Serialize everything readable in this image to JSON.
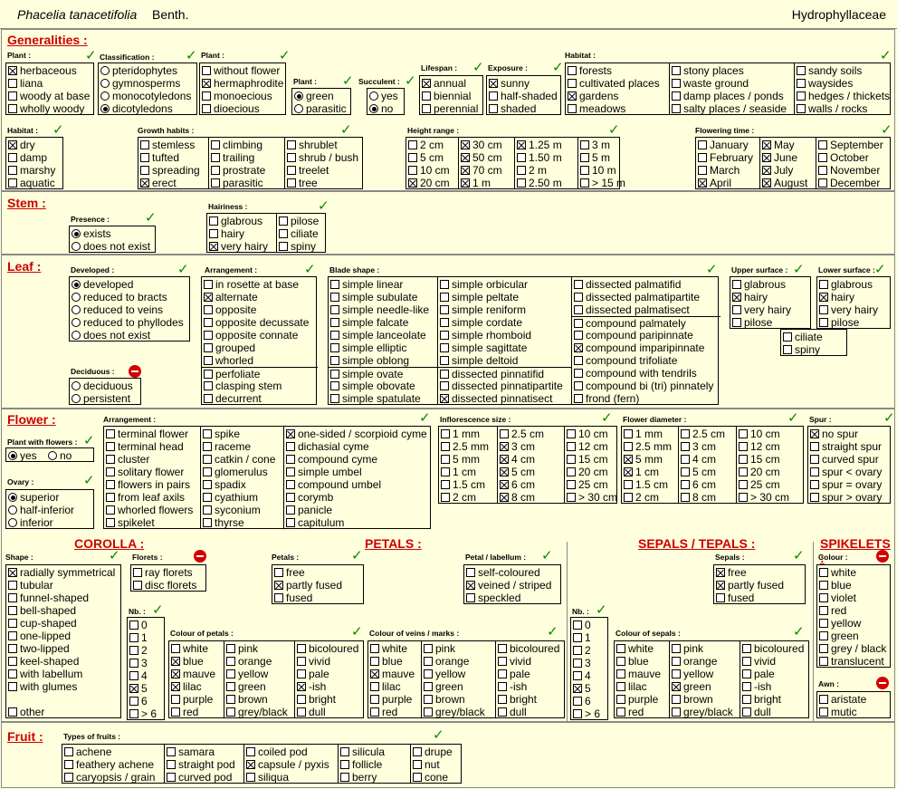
{
  "header": {
    "species": "Phacelia tanacetifolia",
    "author": "Benth.",
    "family": "Hydrophyllaceae"
  },
  "sections": {
    "generalities": "Generalities :",
    "stem": "Stem :",
    "leaf": "Leaf :",
    "flower": "Flower :",
    "fruit": "Fruit :"
  },
  "subheadings": {
    "corolla": "COROLLA :",
    "petals": "PETALS :",
    "sepals": "SEPALS / TEPALS :",
    "spikelets": "SPIKELETS :"
  },
  "groups": [
    {
      "id": "g-plant-1",
      "label": "Plant :",
      "status": "check",
      "type": "cb",
      "cols": [
        [
          "herbaceous",
          "liana",
          "woody at base",
          "wholly woody"
        ]
      ],
      "selected": [
        "herbaceous"
      ]
    },
    {
      "id": "g-class",
      "label": "Classification :",
      "status": "check",
      "type": "rb",
      "cols": [
        [
          "pteridophytes",
          "gymnosperms",
          "monocotyledons",
          "dicotyledons"
        ]
      ],
      "selected": [
        "dicotyledons"
      ]
    },
    {
      "id": "g-plant-2",
      "label": "Plant :",
      "status": "check",
      "type": "cb",
      "cols": [
        [
          "without flower",
          "hermaphrodite",
          "monoecious",
          "dioecious"
        ]
      ],
      "selected": [
        "hermaphrodite"
      ]
    },
    {
      "id": "g-plant-3",
      "label": "Plant :",
      "status": "check",
      "type": "rb",
      "cols": [
        [
          "green",
          "parasitic"
        ]
      ],
      "selected": [
        "green"
      ]
    },
    {
      "id": "g-succ",
      "label": "Succulent :",
      "status": "check",
      "type": "rb",
      "cols": [
        [
          "yes",
          "no"
        ]
      ],
      "selected": [
        "no"
      ]
    },
    {
      "id": "g-life",
      "label": "Lifespan :",
      "status": "check",
      "type": "cb",
      "cols": [
        [
          "annual",
          "biennial",
          "perennial"
        ]
      ],
      "selected": [
        "annual"
      ]
    },
    {
      "id": "g-expo",
      "label": "Exposure :",
      "status": "check",
      "type": "cb",
      "cols": [
        [
          "sunny",
          "half-shaded",
          "shaded"
        ]
      ],
      "selected": [
        "sunny"
      ]
    },
    {
      "id": "g-habitat-1",
      "label": "Habitat :",
      "status": "check",
      "type": "cb",
      "cols": [
        [
          "forests",
          "cultivated places",
          "gardens",
          "meadows"
        ],
        [
          "stony places",
          "waste ground",
          "damp places / ponds",
          "salty places / seaside"
        ],
        [
          "sandy soils",
          "waysides",
          "hedges / thickets",
          "walls / rocks"
        ]
      ],
      "selected": [
        "gardens"
      ]
    },
    {
      "id": "g-habitat-2",
      "label": "Habitat :",
      "status": "check",
      "type": "cb",
      "cols": [
        [
          "dry",
          "damp",
          "marshy",
          "aquatic"
        ]
      ],
      "selected": [
        "dry"
      ]
    },
    {
      "id": "g-growth",
      "label": "Growth habits :",
      "status": "check",
      "type": "cb",
      "cols": [
        [
          "stemless",
          "tufted",
          "spreading",
          "erect"
        ],
        [
          "climbing",
          "trailing",
          "prostrate",
          "parasitic"
        ],
        [
          "shrublet",
          "shrub / bush",
          "treelet",
          "tree"
        ]
      ],
      "selected": [
        "erect"
      ]
    },
    {
      "id": "g-height",
      "label": "Height range :",
      "status": "check",
      "type": "cb",
      "cols": [
        [
          "2 cm",
          "5 cm",
          "10 cm",
          "20 cm"
        ],
        [
          "30 cm",
          "50 cm",
          "70 cm",
          "1 m"
        ],
        [
          "1.25 m",
          "1.50 m",
          "2 m",
          "2.50 m"
        ],
        [
          "3 m",
          "5 m",
          "10 m",
          "> 15 m"
        ]
      ],
      "selected": [
        "30 cm",
        "50 cm",
        "70 cm",
        "1 m",
        "1.25 m",
        "20 cm"
      ]
    },
    {
      "id": "g-flowering",
      "label": "Flowering time :",
      "status": "check",
      "type": "cb",
      "cols": [
        [
          "January",
          "February",
          "March",
          "April"
        ],
        [
          "May",
          "June",
          "July",
          "August"
        ],
        [
          "September",
          "October",
          "November",
          "December"
        ]
      ],
      "selected": [
        "April",
        "May",
        "June",
        "July",
        "August"
      ]
    },
    {
      "id": "g-presence",
      "label": "Presence :",
      "status": "check",
      "type": "rb",
      "cols": [
        [
          "exists",
          "does not exist"
        ]
      ],
      "selected": [
        "exists"
      ]
    },
    {
      "id": "g-stem-hair",
      "label": "Hairiness :",
      "status": "check",
      "type": "cb",
      "cols": [
        [
          "glabrous",
          "hairy",
          "very hairy"
        ],
        [
          "pilose",
          "ciliate",
          "spiny"
        ]
      ],
      "selected": [
        "very hairy"
      ]
    },
    {
      "id": "g-developed",
      "label": "Developed :",
      "status": "check",
      "type": "rb",
      "cols": [
        [
          "developed",
          "reduced to bracts",
          "reduced to veins",
          "reduced to phyllodes",
          "does not exist"
        ]
      ],
      "selected": [
        "developed"
      ]
    },
    {
      "id": "g-deciduous",
      "label": "Deciduous :",
      "status": "stop",
      "type": "rb",
      "cols": [
        [
          "deciduous",
          "persistent"
        ]
      ],
      "selected": []
    },
    {
      "id": "g-arrangement",
      "label": "Arrangement :",
      "status": "check",
      "type": "cb",
      "cols": [
        [
          "in rosette at base",
          "alternate",
          "opposite",
          "opposite decussate",
          "opposite connate",
          "grouped",
          "whorled",
          "perfoliate",
          "clasping stem",
          "decurrent"
        ]
      ],
      "selected": [
        "alternate"
      ]
    },
    {
      "id": "g-blade",
      "label": "Blade shape :",
      "status": "check",
      "type": "cb",
      "cols": [
        [
          "simple linear",
          "simple subulate",
          "simple needle-like",
          "simple falcate",
          "simple lanceolate",
          "simple elliptic",
          "simple oblong",
          "simple ovate",
          "simple obovate",
          "simple spatulate"
        ],
        [
          "simple orbicular",
          "simple peltate",
          "simple reniform",
          "simple cordate",
          "simple rhomboid",
          "simple sagittate",
          "simple deltoid",
          "dissected pinnatifid",
          "dissected pinnatipartite",
          "dissected pinnatisect"
        ],
        [
          "dissected palmatifid",
          "dissected palmatipartite",
          "dissected palmatisect",
          "compound palmately",
          "compound paripinnate",
          "compound imparipinnate",
          "compound trifoliate",
          "compound with tendrils",
          "compound bi (tri) pinnately",
          "frond  (fern)"
        ]
      ],
      "selected": [
        "dissected pinnatisect",
        "compound imparipinnate"
      ]
    },
    {
      "id": "g-upper",
      "label": "Upper surface :",
      "status": "check",
      "type": "cb",
      "cols": [
        [
          "glabrous",
          "hairy",
          "very hairy",
          "pilose"
        ]
      ],
      "selected": [
        "hairy"
      ]
    },
    {
      "id": "g-lower",
      "label": "Lower surface :",
      "status": "check",
      "type": "cb",
      "cols": [
        [
          "glabrous",
          "hairy",
          "very hairy",
          "pilose"
        ]
      ],
      "selected": [
        "hairy"
      ]
    },
    {
      "id": "g-leaf-extra",
      "label": "",
      "status": "none",
      "type": "cb",
      "cols": [
        [
          "ciliate",
          "spiny"
        ]
      ],
      "selected": []
    },
    {
      "id": "g-with-flowers",
      "label": "Plant with flowers :",
      "status": "check",
      "type": "rb",
      "inline": true,
      "cols": [
        [
          "yes",
          "no"
        ]
      ],
      "selected": [
        "yes"
      ]
    },
    {
      "id": "g-ovary",
      "label": "Ovary :",
      "status": "check",
      "type": "rb",
      "cols": [
        [
          "superior",
          "half-inferior",
          "inferior"
        ]
      ],
      "selected": [
        "superior"
      ]
    },
    {
      "id": "g-fl-arr",
      "label": "Arrangement :",
      "status": "check",
      "type": "cb",
      "cols": [
        [
          "terminal flower",
          "terminal head",
          "cluster",
          "solitary flower",
          "flowers in pairs",
          "from leaf axils",
          "whorled flowers",
          "spikelet"
        ],
        [
          "spike",
          "raceme",
          "catkin / cone",
          "glomerulus",
          "spadix",
          "cyathium",
          "syconium",
          "thyrse"
        ],
        [
          "one-sided / scorpioid cyme",
          "dichasial cyme",
          "compound cyme",
          "simple umbel",
          "compound umbel",
          "corymb",
          "panicle",
          "capitulum"
        ]
      ],
      "selected": [
        "one-sided / scorpioid cyme"
      ]
    },
    {
      "id": "g-infl",
      "label": "Inflorescence size :",
      "status": "check",
      "type": "cb",
      "cols": [
        [
          "1 mm",
          "2.5 mm",
          "5 mm",
          "1 cm",
          "1.5 cm",
          "2 cm"
        ],
        [
          "2.5 cm",
          "3 cm",
          "4 cm",
          "5 cm",
          "6 cm",
          "8 cm"
        ],
        [
          "10 cm",
          "12 cm",
          "15 cm",
          "20 cm",
          "25 cm",
          "> 30 cm"
        ]
      ],
      "selected": [
        "3 cm",
        "4 cm",
        "5 cm",
        "6 cm",
        "8 cm"
      ]
    },
    {
      "id": "g-fdiam",
      "label": "Flower diameter :",
      "status": "check",
      "type": "cb",
      "cols": [
        [
          "1 mm",
          "2.5 mm",
          "5 mm",
          "1 cm",
          "1.5 cm",
          "2 cm"
        ],
        [
          "2.5 cm",
          "3 cm",
          "4 cm",
          "5 cm",
          "6 cm",
          "8 cm"
        ],
        [
          "10 cm",
          "12 cm",
          "15 cm",
          "20 cm",
          "25 cm",
          "> 30 cm"
        ]
      ],
      "selected": [
        "5 mm",
        "1 cm"
      ]
    },
    {
      "id": "g-spur",
      "label": "Spur :",
      "status": "check",
      "type": "cb",
      "cols": [
        [
          "no spur",
          "straight spur",
          "curved spur",
          "spur < ovary",
          "spur = ovary",
          "spur > ovary"
        ]
      ],
      "selected": [
        "no spur"
      ]
    },
    {
      "id": "g-shape",
      "label": "Shape :",
      "status": "check",
      "type": "cb",
      "cols": [
        [
          "radially symmetrical",
          "tubular",
          "funnel-shaped",
          "bell-shaped",
          "cup-shaped",
          "one-lipped",
          "two-lipped",
          "keel-shaped",
          "with labellum",
          "with glumes",
          "",
          "other"
        ]
      ],
      "selected": [
        "radially symmetrical"
      ]
    },
    {
      "id": "g-florets",
      "label": "Florets :",
      "status": "stop",
      "type": "cb",
      "cols": [
        [
          "ray florets",
          "disc florets"
        ]
      ],
      "selected": []
    },
    {
      "id": "g-nb-1",
      "label": "Nb. :",
      "status": "check",
      "type": "cb",
      "cols": [
        [
          "0",
          "1",
          "2",
          "3",
          "4",
          "5",
          "6",
          "> 6"
        ]
      ],
      "selected": [
        "5"
      ]
    },
    {
      "id": "g-col-petals",
      "label": "Colour of petals :",
      "status": "check",
      "type": "cb",
      "cols": [
        [
          "white",
          "blue",
          "mauve",
          "lilac",
          "purple",
          "red"
        ],
        [
          "pink",
          "orange",
          "yellow",
          "green",
          "brown",
          "grey/black"
        ],
        [
          "bicoloured",
          "vivid",
          "pale",
          "-ish",
          "bright",
          "dull"
        ]
      ],
      "selected": [
        "blue",
        "mauve",
        "lilac",
        "-ish"
      ]
    },
    {
      "id": "g-petals",
      "label": "Petals :",
      "status": "check",
      "type": "cb",
      "cols": [
        [
          "free",
          "partly fused",
          "fused"
        ]
      ],
      "selected": [
        "partly fused"
      ]
    },
    {
      "id": "g-labellum",
      "label": "Petal / labellum :",
      "status": "check",
      "type": "cb",
      "cols": [
        [
          "self-coloured",
          "veined / striped",
          "speckled"
        ]
      ],
      "selected": [
        "veined / striped"
      ]
    },
    {
      "id": "g-col-veins",
      "label": "Colour of veins / marks :",
      "status": "check",
      "type": "cb",
      "cols": [
        [
          "white",
          "blue",
          "mauve",
          "lilac",
          "purple",
          "red"
        ],
        [
          "pink",
          "orange",
          "yellow",
          "green",
          "brown",
          "grey/black"
        ],
        [
          "bicoloured",
          "vivid",
          "pale",
          "-ish",
          "bright",
          "dull"
        ]
      ],
      "selected": [
        "mauve"
      ]
    },
    {
      "id": "g-sepals",
      "label": "Sepals :",
      "status": "check",
      "type": "cb",
      "cols": [
        [
          "free",
          "partly fused",
          "fused"
        ]
      ],
      "selected": [
        "free",
        "partly fused"
      ]
    },
    {
      "id": "g-nb-2",
      "label": "Nb. :",
      "status": "check",
      "type": "cb",
      "cols": [
        [
          "0",
          "1",
          "2",
          "3",
          "4",
          "5",
          "6",
          "> 6"
        ]
      ],
      "selected": [
        "5"
      ]
    },
    {
      "id": "g-col-sepals",
      "label": "Colour of sepals :",
      "status": "check",
      "type": "cb",
      "cols": [
        [
          "white",
          "blue",
          "mauve",
          "lilac",
          "purple",
          "red"
        ],
        [
          "pink",
          "orange",
          "yellow",
          "green",
          "brown",
          "grey/black"
        ],
        [
          "bicoloured",
          "vivid",
          "pale",
          "-ish",
          "bright",
          "dull"
        ]
      ],
      "selected": [
        "green"
      ]
    },
    {
      "id": "g-spk-colour",
      "label": "Colour :",
      "status": "stop",
      "type": "cb",
      "cols": [
        [
          "white",
          "blue",
          "violet",
          "red",
          "yellow",
          "green",
          "grey / black",
          "translucent"
        ]
      ],
      "selected": []
    },
    {
      "id": "g-awn",
      "label": "Awn :",
      "status": "stop",
      "type": "cb",
      "cols": [
        [
          "aristate",
          "mutic"
        ]
      ],
      "selected": []
    },
    {
      "id": "g-fruits",
      "label": "Types of fruits :",
      "status": "check",
      "type": "cb",
      "cols": [
        [
          "achene",
          "feathery achene",
          "caryopsis / grain"
        ],
        [
          "samara",
          "straight pod",
          "curved pod"
        ],
        [
          "coiled pod",
          "capsule / pyxis",
          "siliqua"
        ],
        [
          "silicula",
          "follicle",
          "berry"
        ],
        [
          "drupe",
          "nut",
          "cone"
        ]
      ],
      "selected": [
        "capsule / pyxis"
      ]
    }
  ],
  "icons": {
    "check": "check-icon",
    "stop": "no-entry-icon"
  },
  "colors": {
    "background": "#ffffdd",
    "section_title": "#cc0000",
    "check": "#008800",
    "stop": "#d40000"
  }
}
